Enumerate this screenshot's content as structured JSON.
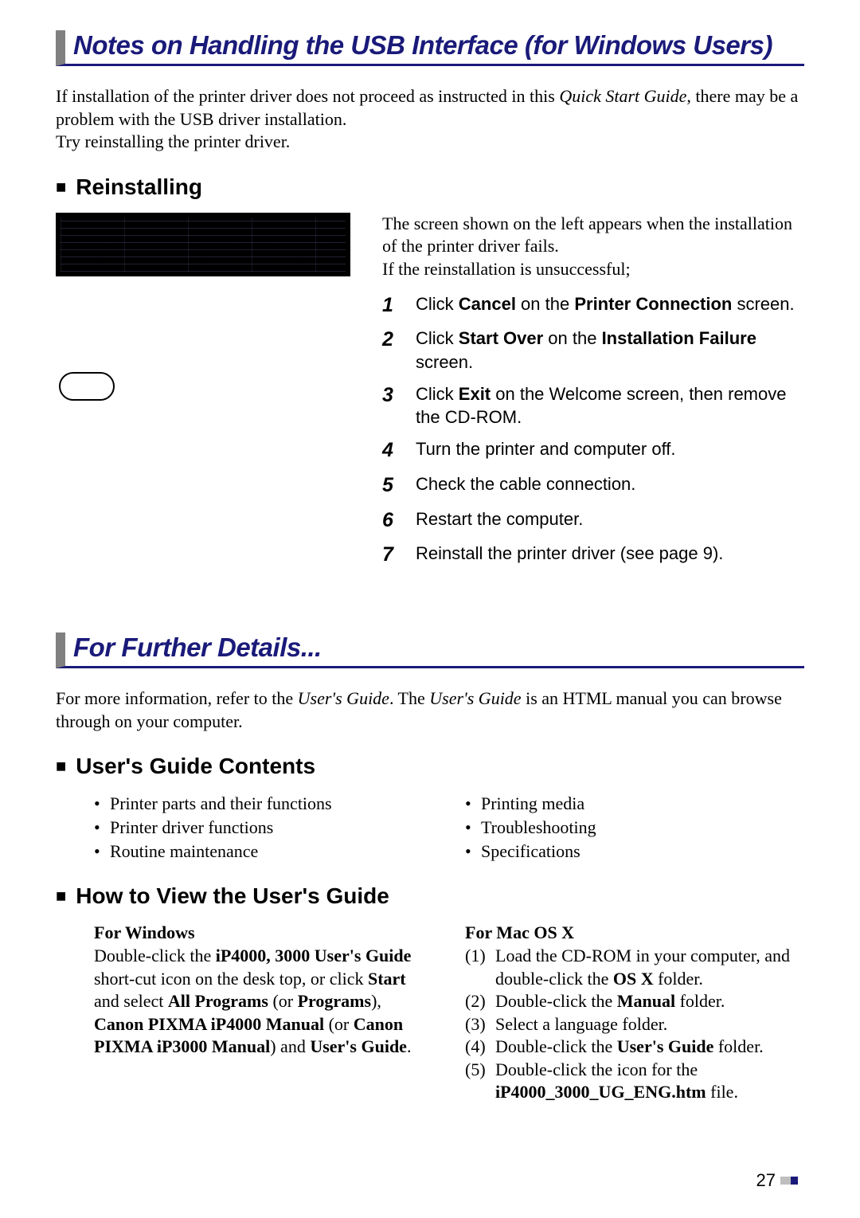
{
  "heading1": "Notes on Handling the USB Interface (for Windows Users)",
  "intro": {
    "p1a": "If installation of the printer driver does not proceed as instructed in this ",
    "p1i": "Quick Start Guide",
    "p1b": ", there may be a problem with the USB driver installation.",
    "p2": "Try reinstalling the printer driver."
  },
  "sub1": "Reinstalling",
  "right_intro": {
    "p1": "The screen shown on the left appears when the installation of the printer driver fails.",
    "p2": "If the reinstallation is unsuccessful;"
  },
  "steps": [
    {
      "n": "1",
      "pre": "Click ",
      "b1": "Cancel",
      "mid": " on the ",
      "b2": "Printer Connection",
      "post": " screen."
    },
    {
      "n": "2",
      "pre": "Click ",
      "b1": "Start Over",
      "mid": " on the ",
      "b2": "Installation Failure",
      "post": " screen."
    },
    {
      "n": "3",
      "pre": "Click ",
      "b1": "Exit",
      "mid": " on the Welcome screen, then remove the CD-ROM.",
      "b2": "",
      "post": ""
    },
    {
      "n": "4",
      "pre": "Turn the printer and computer off.",
      "b1": "",
      "mid": "",
      "b2": "",
      "post": ""
    },
    {
      "n": "5",
      "pre": "Check the cable connection.",
      "b1": "",
      "mid": "",
      "b2": "",
      "post": ""
    },
    {
      "n": "6",
      "pre": "Restart the computer.",
      "b1": "",
      "mid": "",
      "b2": "",
      "post": ""
    },
    {
      "n": "7",
      "pre": "Reinstall the printer driver (see page 9).",
      "b1": "",
      "mid": "",
      "b2": "",
      "post": ""
    }
  ],
  "heading2": "For Further Details...",
  "intro2": {
    "a": "For more information, refer to the ",
    "i1": "User's Guide",
    "b": ". The ",
    "i2": "User's Guide",
    "c": " is an HTML manual you can browse through on your computer."
  },
  "sub2": "User's Guide Contents",
  "bullets_left": [
    "Printer parts and their functions",
    "Printer driver functions",
    "Routine maintenance"
  ],
  "bullets_right": [
    "Printing media",
    "Troubleshooting",
    "Specifications"
  ],
  "sub3": "How to View the User's Guide",
  "win": {
    "hd": "For Windows",
    "t1": "Double-click the ",
    "b1": "iP4000, 3000 User's Guide",
    "t2": " short-cut icon on the desk top, or click ",
    "b2": "Start",
    "t3": " and select ",
    "b3": "All Programs",
    "t4": " (or ",
    "b4": "Programs",
    "t5": "), ",
    "b5": "Canon PIXMA iP4000 Manual",
    "t6": " (or ",
    "b6": "Canon PIXMA iP3000 Manual",
    "t7": ") and ",
    "b7": "User's Guide",
    "t8": "."
  },
  "mac": {
    "hd": "For Mac OS X",
    "items": [
      {
        "n": "(1)",
        "a": "Load the CD-ROM in your computer, and double-click the ",
        "b": "OS X",
        "c": " folder."
      },
      {
        "n": "(2)",
        "a": "Double-click the ",
        "b": "Manual",
        "c": " folder."
      },
      {
        "n": "(3)",
        "a": "Select a language folder.",
        "b": "",
        "c": ""
      },
      {
        "n": "(4)",
        "a": "Double-click the ",
        "b": "User's Guide",
        "c": " folder."
      },
      {
        "n": "(5)",
        "a": "Double-click the icon for the ",
        "b": "iP4000_3000_UG_ENG.htm",
        "c": " file."
      }
    ]
  },
  "page": "27"
}
